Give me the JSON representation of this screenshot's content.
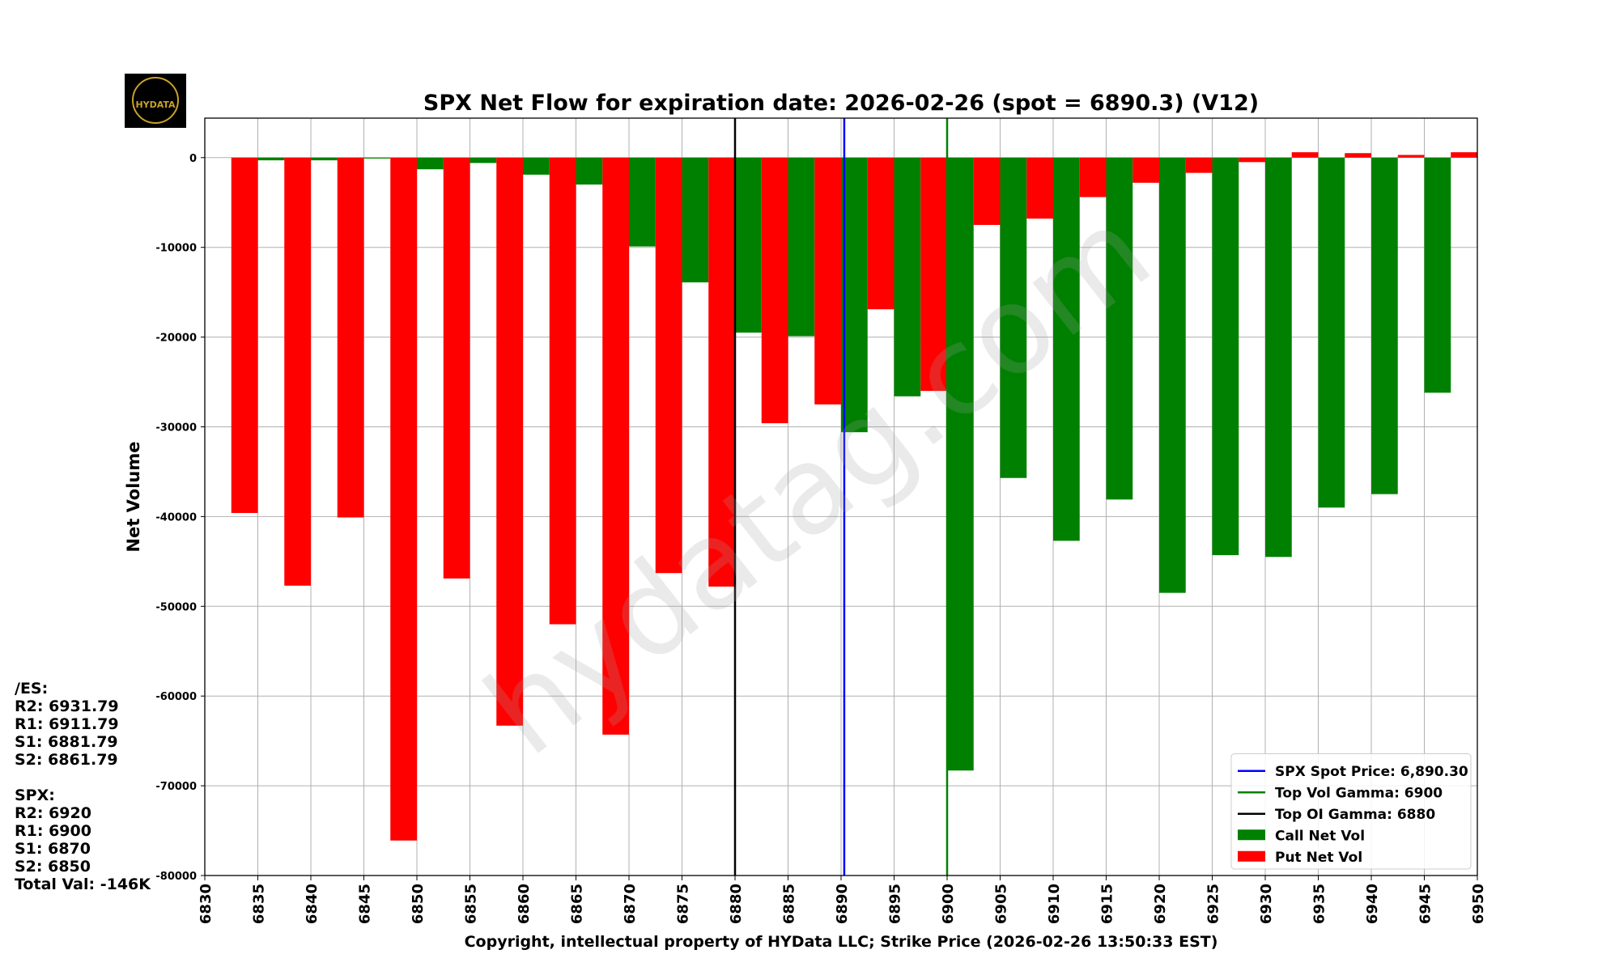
{
  "chart_data": {
    "type": "bar",
    "title": "SPX Net Flow for expiration date: 2026-02-26 (spot = 6890.3) (V12)",
    "x_label": "Copyright, intellectual property of HYData LLC; Strike Price (2026-02-26 13:50:33 EST)",
    "y_label": "Net Volume",
    "x": [
      6835,
      6840,
      6845,
      6850,
      6855,
      6860,
      6865,
      6870,
      6875,
      6880,
      6885,
      6890,
      6895,
      6900,
      6905,
      6910,
      6915,
      6920,
      6925,
      6930,
      6935,
      6940,
      6945,
      6950
    ],
    "series": [
      {
        "name": "Call Net Vol",
        "color": "#008000",
        "values": [
          -300,
          -300,
          -100,
          -1300,
          -600,
          -1900,
          -3000,
          -9900,
          -13900,
          -19500,
          -19900,
          -30600,
          -26600,
          -68300,
          -35700,
          -42700,
          -38100,
          -48500,
          -44300,
          -44500,
          -39000,
          -37500,
          -26200,
          null
        ]
      },
      {
        "name": "Put Net Vol",
        "color": "#ff0000",
        "values": [
          -39600,
          -47700,
          -40100,
          -76100,
          -46900,
          -63300,
          -52000,
          -64300,
          -46300,
          -47800,
          -29600,
          -27500,
          -16900,
          -26000,
          -7500,
          -6800,
          -4400,
          -2800,
          -1700,
          -500,
          600,
          500,
          300,
          600
        ]
      }
    ],
    "vlines": [
      {
        "name": "SPX Spot Price: 6,890.30",
        "x": 6890.3,
        "color": "#0000ff"
      },
      {
        "name": "Top Vol Gamma: 6900",
        "x": 6900,
        "color": "#008000"
      },
      {
        "name": "Top OI Gamma: 6880",
        "x": 6880,
        "color": "#000000"
      }
    ],
    "xlim": [
      6830,
      6950
    ],
    "xticks": [
      6830,
      6835,
      6840,
      6845,
      6850,
      6855,
      6860,
      6865,
      6870,
      6875,
      6880,
      6885,
      6890,
      6895,
      6900,
      6905,
      6910,
      6915,
      6920,
      6925,
      6930,
      6935,
      6940,
      6945,
      6950
    ],
    "ylim": [
      -80000,
      4400
    ],
    "yticks": [
      0,
      -10000,
      -20000,
      -30000,
      -40000,
      -50000,
      -60000,
      -70000,
      -80000
    ],
    "grid": true,
    "legend": "lower right"
  },
  "sidebar": {
    "es": {
      "title": "/ES:",
      "lines": [
        "R2: 6931.79",
        "R1: 6911.79",
        "S1: 6881.79",
        "S2: 6861.79"
      ]
    },
    "spx": {
      "title": "SPX:",
      "lines": [
        "R2: 6920",
        "R1: 6900",
        "S1: 6870",
        "S2: 6850",
        "Total Val: -146K"
      ]
    }
  },
  "logo": "HYDATA",
  "watermark": "hydatag.com"
}
